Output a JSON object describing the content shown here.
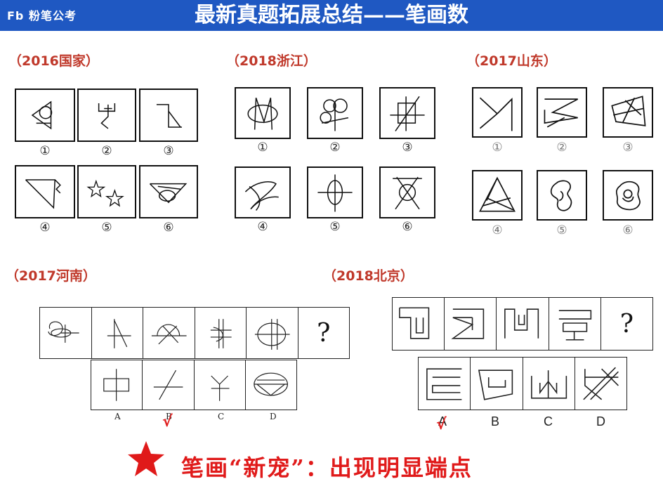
{
  "header": {
    "logo": "Fb 粉笔公考",
    "title": "最新真题拓展总结——笔画数"
  },
  "sections": {
    "s1": {
      "label": "（2016国家）",
      "numbers": [
        "①",
        "②",
        "③",
        "④",
        "⑤",
        "⑥"
      ]
    },
    "s2": {
      "label": "（2018浙江）",
      "numbers": [
        "①",
        "②",
        "③",
        "④",
        "⑤",
        "⑥"
      ]
    },
    "s3": {
      "label": "（2017山东）",
      "numbers": [
        "①",
        "②",
        "③",
        "④",
        "⑤",
        "⑥"
      ]
    },
    "s4": {
      "label": "（2017河南）",
      "question_mark": "?",
      "options": [
        "A",
        "B",
        "C",
        "D"
      ],
      "answer_mark": "√"
    },
    "s5": {
      "label": "（2018北京）",
      "question_mark": "?",
      "options": [
        "A",
        "B",
        "C",
        "D"
      ],
      "answer_mark": "√"
    }
  },
  "footer": {
    "tip": "笔画“新宠”：出现明显端点"
  },
  "colors": {
    "banner": "#1f58c2",
    "section_label": "#c0392b",
    "tip": "#e01a1a",
    "star": "#e01a1a"
  },
  "icons": [
    "star-icon"
  ]
}
